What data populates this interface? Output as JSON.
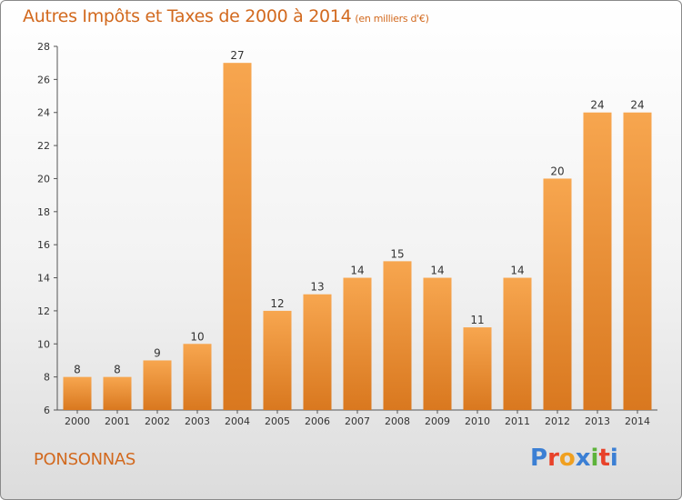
{
  "header": {
    "title": "Autres Impôts et Taxes de 2000 à 2014",
    "unit": "(en milliers d'€)"
  },
  "footer": {
    "commune": "PONSONNAS",
    "brand": "Proxiti"
  },
  "colors": {
    "bar_light": "#f7a64f",
    "bar_dark": "#d9781f",
    "title": "#d2691e",
    "brand": [
      "#3b7fd4",
      "#e8422a",
      "#f0a020",
      "#3b7fd4",
      "#5db33a",
      "#e8422a",
      "#3b7fd4"
    ]
  },
  "chart_data": {
    "type": "bar",
    "categories": [
      "2000",
      "2001",
      "2002",
      "2003",
      "2004",
      "2005",
      "2006",
      "2007",
      "2008",
      "2009",
      "2010",
      "2011",
      "2012",
      "2013",
      "2014"
    ],
    "values": [
      8,
      8,
      9,
      10,
      27,
      12,
      13,
      14,
      15,
      14,
      11,
      14,
      20,
      24,
      24
    ],
    "ylim": [
      6,
      28
    ],
    "yticks": [
      6,
      8,
      10,
      12,
      14,
      16,
      18,
      20,
      22,
      24,
      26,
      28
    ],
    "grid": false,
    "data_labels": true
  }
}
